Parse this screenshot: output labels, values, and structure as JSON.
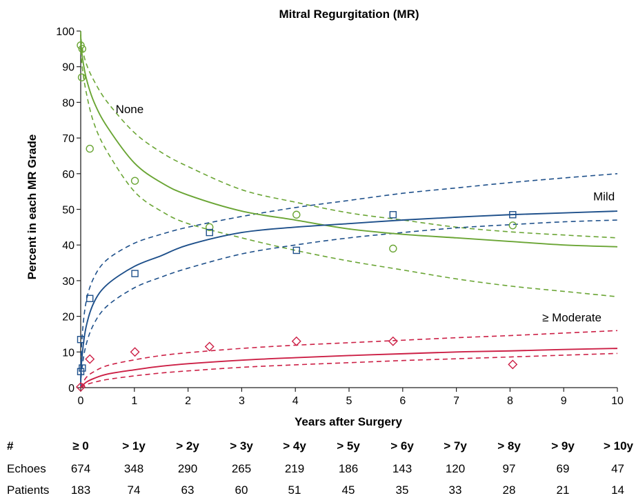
{
  "chart_data": {
    "type": "line",
    "title": "Mitral Regurgitation (MR)",
    "xlabel": "Years after Surgery",
    "ylabel": "Percent in each MR Grade",
    "xlim": [
      0,
      10
    ],
    "ylim": [
      0,
      100
    ],
    "x_ticks": [
      "0",
      "1",
      "2",
      "3",
      "4",
      "5",
      "6",
      "7",
      "8",
      "9",
      "10"
    ],
    "y_ticks": [
      "0",
      "10",
      "20",
      "30",
      "40",
      "50",
      "60",
      "70",
      "80",
      "90",
      "100"
    ],
    "grid": false,
    "series": [
      {
        "name": "None",
        "color": "#6aa534",
        "marker": "circle",
        "observed": [
          {
            "x": 0.0,
            "y": 96
          },
          {
            "x": 0.03,
            "y": 95
          },
          {
            "x": 0.02,
            "y": 87
          },
          {
            "x": 0.17,
            "y": 67
          },
          {
            "x": 1.01,
            "y": 58
          },
          {
            "x": 2.4,
            "y": 45
          },
          {
            "x": 4.02,
            "y": 48.5
          },
          {
            "x": 5.82,
            "y": 39
          },
          {
            "x": 8.05,
            "y": 45.5
          }
        ],
        "fit": {
          "x": [
            0,
            0.02,
            0.1,
            0.25,
            0.5,
            1,
            1.5,
            2,
            3,
            4,
            5,
            6,
            7,
            8,
            9,
            10
          ],
          "estimate": [
            99,
            94,
            87,
            80,
            73,
            63,
            57.5,
            54,
            49.5,
            47,
            44.5,
            43,
            42,
            41,
            40,
            39.5
          ],
          "upper": [
            100,
            96,
            91,
            86,
            80,
            71.5,
            66,
            62,
            55.5,
            52,
            49,
            47,
            45,
            43.7,
            42.8,
            42
          ],
          "lower": [
            97,
            91,
            83,
            74,
            66,
            55,
            49.5,
            46,
            42,
            38.5,
            35.5,
            33,
            30.5,
            28.5,
            27,
            25.5
          ]
        }
      },
      {
        "name": "Mild",
        "color": "#1d4f8a",
        "marker": "square",
        "observed": [
          {
            "x": 0.0,
            "y": 13.5
          },
          {
            "x": 0.03,
            "y": 5.5
          },
          {
            "x": 0.0,
            "y": 4.5
          },
          {
            "x": 0.17,
            "y": 25
          },
          {
            "x": 1.01,
            "y": 32
          },
          {
            "x": 2.4,
            "y": 43.5
          },
          {
            "x": 4.02,
            "y": 38.5
          },
          {
            "x": 5.82,
            "y": 48.5
          },
          {
            "x": 8.05,
            "y": 48.5
          }
        ],
        "fit": {
          "x": [
            0,
            0.02,
            0.1,
            0.25,
            0.5,
            1,
            1.5,
            2,
            3,
            4,
            5,
            6,
            7,
            8,
            9,
            10
          ],
          "estimate": [
            1,
            8,
            17,
            24,
            29,
            34,
            37,
            40,
            43.5,
            45,
            46,
            47,
            47.8,
            48.5,
            49,
            49.5
          ],
          "upper": [
            2,
            13,
            24,
            31,
            36,
            40.5,
            43,
            45,
            48,
            50.5,
            52.5,
            54.5,
            56,
            57.5,
            58.8,
            60
          ],
          "lower": [
            0.5,
            5,
            12,
            18,
            23,
            28,
            31,
            33.5,
            37.5,
            40,
            42,
            43.5,
            44.8,
            45.7,
            46.5,
            47
          ]
        }
      },
      {
        "name": "≥ Moderate",
        "color": "#cc1f45",
        "marker": "diamond",
        "observed": [
          {
            "x": 0.0,
            "y": 0.2
          },
          {
            "x": 0.17,
            "y": 8
          },
          {
            "x": 1.01,
            "y": 10
          },
          {
            "x": 2.4,
            "y": 11.5
          },
          {
            "x": 4.02,
            "y": 13
          },
          {
            "x": 5.82,
            "y": 13
          },
          {
            "x": 8.05,
            "y": 6.5
          }
        ],
        "fit": {
          "x": [
            0,
            0.1,
            0.25,
            0.5,
            1,
            1.5,
            2,
            3,
            4,
            5,
            6,
            7,
            8,
            9,
            10
          ],
          "estimate": [
            0,
            1.5,
            2.6,
            3.8,
            5,
            6,
            6.7,
            7.7,
            8.4,
            9,
            9.5,
            10,
            10.3,
            10.7,
            11
          ],
          "upper": [
            0,
            2.8,
            4.5,
            6.2,
            7.8,
            9,
            9.8,
            11,
            11.9,
            12.6,
            13.3,
            14,
            14.6,
            15.3,
            16
          ],
          "lower": [
            0,
            0.8,
            1.5,
            2.3,
            3.3,
            4.1,
            4.7,
            5.7,
            6.4,
            7,
            7.6,
            8.1,
            8.6,
            9.1,
            9.6
          ]
        }
      }
    ],
    "series_labels": [
      {
        "text": "None",
        "x": 0.65,
        "y": 77
      },
      {
        "text": "Mild",
        "x": 9.55,
        "y": 52.5
      },
      {
        "text": "≥ Moderate",
        "x": 8.6,
        "y": 18.6
      }
    ]
  },
  "table": {
    "header": [
      "#",
      "≥ 0",
      "> 1y",
      "> 2y",
      "> 3y",
      "> 4y",
      "> 5y",
      "> 6y",
      "> 7y",
      "> 8y",
      "> 9y",
      "> 10y"
    ],
    "rows": [
      {
        "label": "Echoes",
        "values": [
          "674",
          "348",
          "290",
          "265",
          "219",
          "186",
          "143",
          "120",
          "97",
          "69",
          "47"
        ]
      },
      {
        "label": "Patients",
        "values": [
          "183",
          "74",
          "63",
          "60",
          "51",
          "45",
          "35",
          "33",
          "28",
          "21",
          "14"
        ]
      }
    ]
  }
}
